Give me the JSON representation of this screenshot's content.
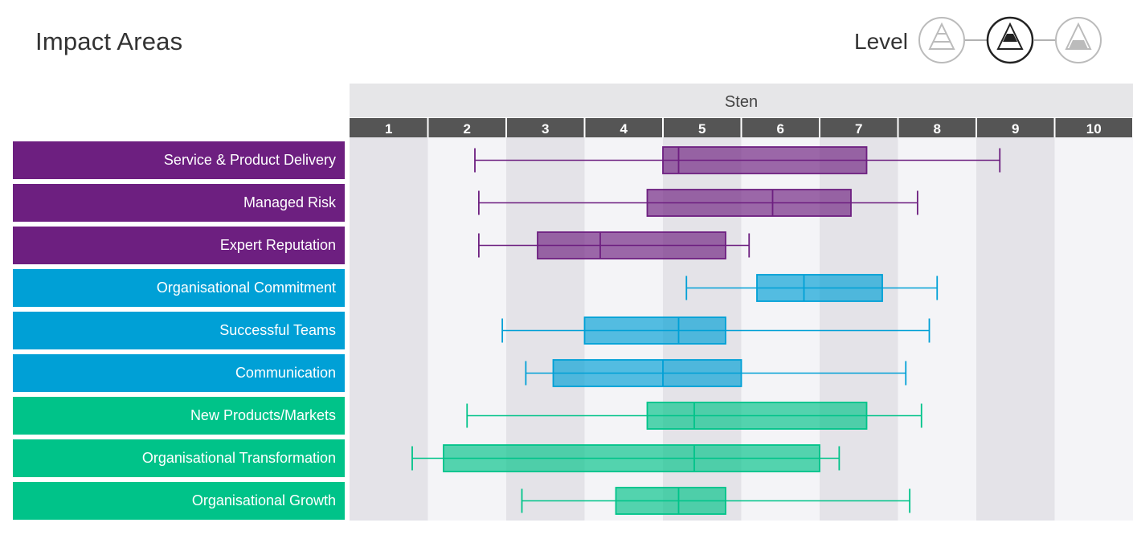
{
  "header": {
    "title": "Impact Areas",
    "level_label": "Level"
  },
  "level_selector": {
    "options": [
      "low-level-icon",
      "mid-level-icon",
      "high-level-icon"
    ],
    "selected": "mid-level-icon"
  },
  "colors": {
    "purple": "#6d1f80",
    "blue": "#00a0d6",
    "green": "#00c389",
    "axis_band": "#555555",
    "axis_title_band": "#e6e6e8",
    "stripe_dark": "#e4e3e8",
    "stripe_light": "#f4f4f7"
  },
  "chart_data": {
    "type": "boxplot",
    "axis_title": "Sten",
    "xlim": [
      0.5,
      10.5
    ],
    "ticks": [
      "1",
      "2",
      "3",
      "4",
      "5",
      "6",
      "7",
      "8",
      "9",
      "10"
    ],
    "series": [
      {
        "label": "Service & Product Delivery",
        "group": "purple",
        "min": 2.1,
        "q1": 4.5,
        "median": 4.7,
        "q3": 7.1,
        "max": 8.8
      },
      {
        "label": "Managed Risk",
        "group": "purple",
        "min": 2.15,
        "q1": 4.3,
        "median": 5.9,
        "q3": 6.9,
        "max": 7.75
      },
      {
        "label": "Expert Reputation",
        "group": "purple",
        "min": 2.15,
        "q1": 2.9,
        "median": 3.7,
        "q3": 5.3,
        "max": 5.6
      },
      {
        "label": "Organisational Commitment",
        "group": "blue",
        "min": 4.8,
        "q1": 5.7,
        "median": 6.3,
        "q3": 7.3,
        "max": 8.0
      },
      {
        "label": "Successful Teams",
        "group": "blue",
        "min": 2.45,
        "q1": 3.5,
        "median": 4.7,
        "q3": 5.3,
        "max": 7.9
      },
      {
        "label": "Communication",
        "group": "blue",
        "min": 2.75,
        "q1": 3.1,
        "median": 4.5,
        "q3": 5.5,
        "max": 7.6
      },
      {
        "label": "New Products/Markets",
        "group": "green",
        "min": 2.0,
        "q1": 4.3,
        "median": 4.9,
        "q3": 7.1,
        "max": 7.8
      },
      {
        "label": "Organisational Transformation",
        "group": "green",
        "min": 1.3,
        "q1": 1.7,
        "median": 4.9,
        "q3": 6.5,
        "max": 6.75
      },
      {
        "label": "Organisational Growth",
        "group": "green",
        "min": 2.7,
        "q1": 3.9,
        "median": 4.7,
        "q3": 5.3,
        "max": 7.65
      }
    ]
  }
}
